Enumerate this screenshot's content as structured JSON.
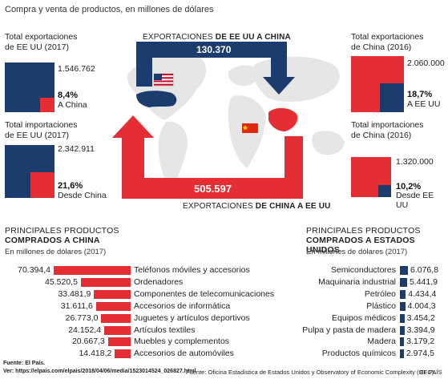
{
  "title": "Compra y venta de productos, en millones de dólares",
  "colors": {
    "navy": "#1d3c6e",
    "red": "#e52e34",
    "map": "#e8e8e8"
  },
  "boxes": {
    "us_exports": {
      "title_line1": "Total exportaciones",
      "title_line2": "de EE UU (2017)",
      "total": "1.546.762",
      "pct": "8,4%",
      "sub": "A China",
      "share": 0.084
    },
    "us_imports": {
      "title_line1": "Total importaciones",
      "title_line2": "de EE UU (2017)",
      "total": "2.342.911",
      "pct": "21,6%",
      "sub": "Desde China",
      "share": 0.216
    },
    "cn_exports": {
      "title_line1": "Total exportaciones",
      "title_line2": "de China (2016)",
      "total": "2.060.000",
      "pct": "18,7%",
      "sub": "A EE UU",
      "share": 0.187
    },
    "cn_imports": {
      "title_line1": "Total importaciones",
      "title_line2": "de China (2016)",
      "total": "1.320.000",
      "pct": "10,2%",
      "sub": "Desde EE UU",
      "share": 0.102
    }
  },
  "flows": {
    "us_to_cn_label_a": "EXPORTACIONES ",
    "us_to_cn_label_b": "DE EE UU A CHINA",
    "us_to_cn_value": "130.370",
    "cn_to_us_label_a": "EXPORTACIONES ",
    "cn_to_us_label_b": "DE CHINA A EE UU",
    "cn_to_us_value": "505.597"
  },
  "left_section": {
    "title1": "PRINCIPALES PRODUCTOS",
    "title2": "COMPRADOS A CHINA",
    "unit": "En millones de dólares (2017)"
  },
  "right_section": {
    "title1": "PRINCIPALES PRODUCTOS",
    "title2": "COMPRADOS A ESTADOS UNIDOS",
    "unit": "En millones de dólares (2017)"
  },
  "chart_data": [
    {
      "type": "bar",
      "title": "PRINCIPALES PRODUCTOS COMPRADOS A CHINA",
      "categories": [
        "Teléfonos móviles y accesorios",
        "Ordenadores",
        "Componentes de telecomunicaciones",
        "Accesorios de informática",
        "Juguetes y artículos deportivos",
        "Artículos textiles",
        "Muebles y complementos",
        "Accesorios de automóviles"
      ],
      "values": [
        70394.4,
        45520.5,
        33481.9,
        31611.6,
        26773.0,
        24152.4,
        20667.3,
        14418.2
      ],
      "value_labels": [
        "70.394,4",
        "45.520,5",
        "33.481,9",
        "31.611,6",
        "26.773,0",
        "24.152,4",
        "20.667,3",
        "14.418,2"
      ],
      "color": "#e52e34"
    },
    {
      "type": "bar",
      "title": "PRINCIPALES PRODUCTOS COMPRADOS A ESTADOS UNIDOS",
      "categories": [
        "Semiconductores",
        "Maquinaria industrial",
        "Petróleo",
        "Plástico",
        "Equipos médicos",
        "Pulpa y pasta de madera",
        "Madera",
        "Productos químicos"
      ],
      "values": [
        6076.8,
        5441.9,
        4434.4,
        4004.3,
        3454.2,
        3394.9,
        3179.2,
        2974.5
      ],
      "value_labels": [
        "6.076,8",
        "5.441,9",
        "4.434,4",
        "4.004,3",
        "3.454,2",
        "3.394,9",
        "3.179,2",
        "2.974,5"
      ],
      "color": "#1d3c6e"
    }
  ],
  "footer": {
    "fuente_left_label": "Fuente: El País.",
    "ver_url": "Ver: https://elpais.com/elpais/2018/04/06/media/1523014524_026827.html",
    "source": "Fuente: Oficina Estadística de Estados Unidos y Observatory of Economic Complexity (OEC).",
    "brand": "EL PAÍS"
  }
}
